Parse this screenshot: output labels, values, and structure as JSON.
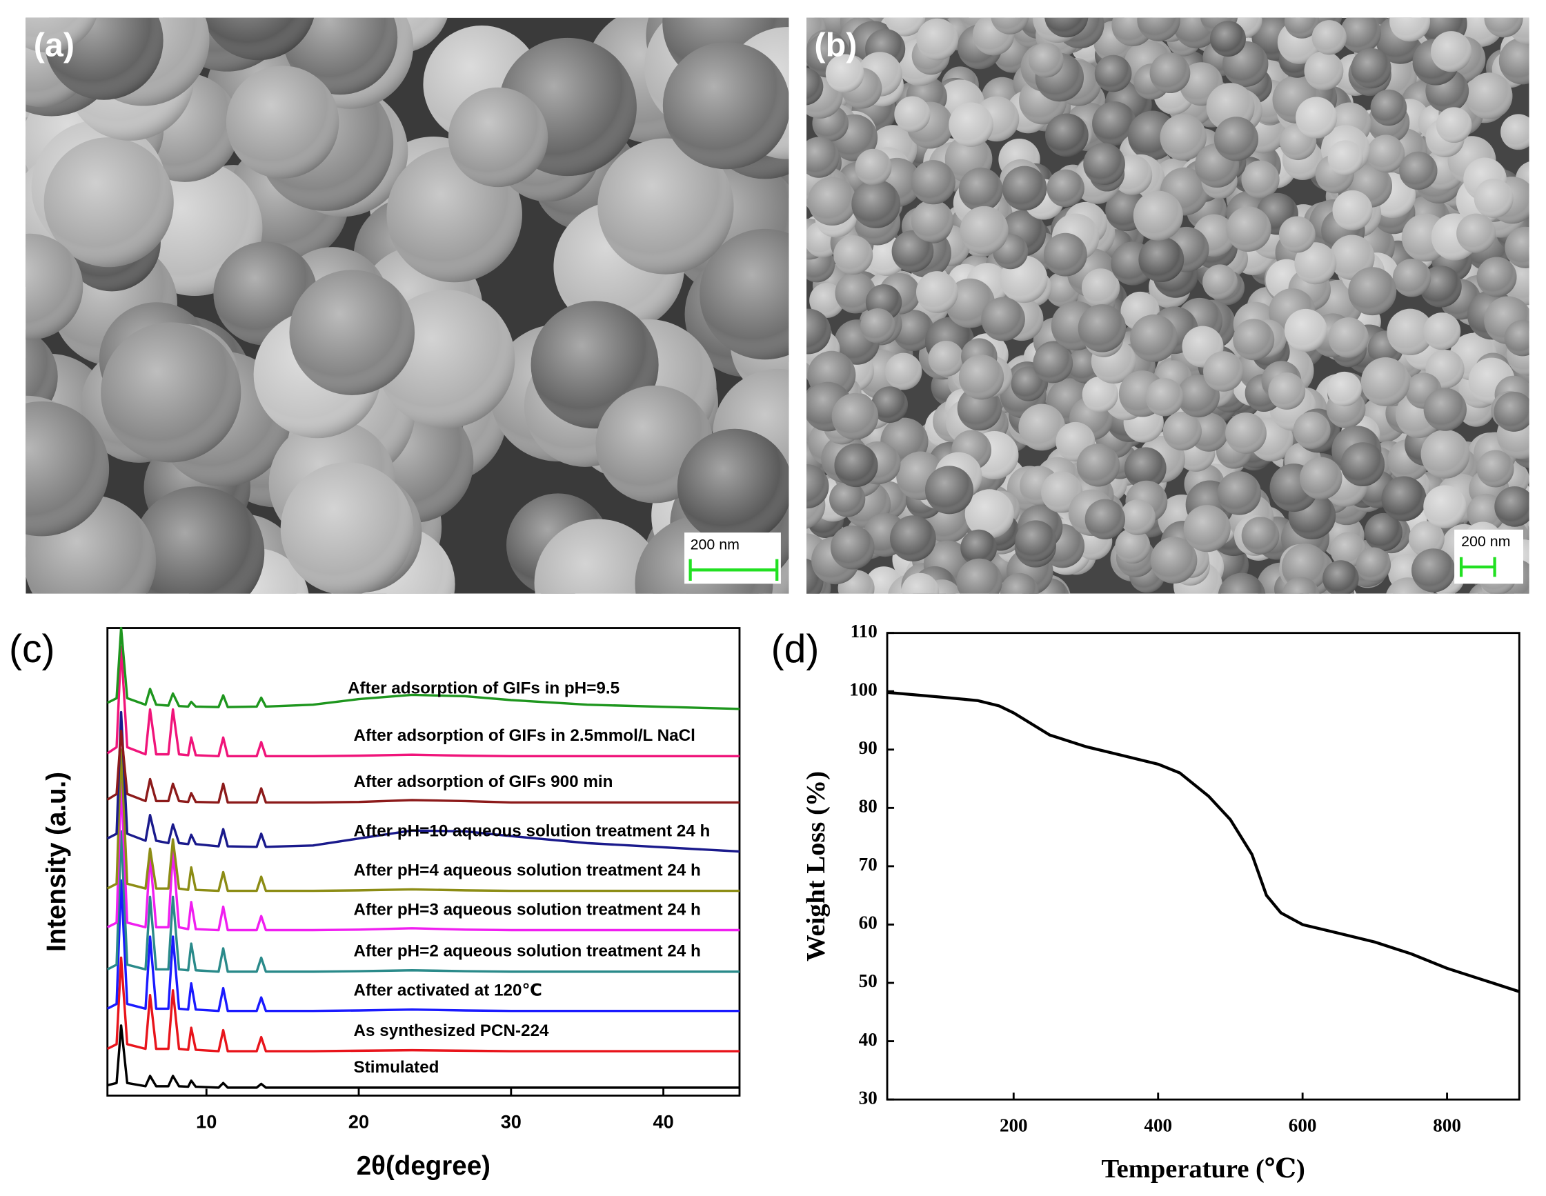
{
  "panels": [
    {
      "label": "(a)",
      "scale_bar": "200 nm"
    },
    {
      "label": "(b)",
      "scale_bar": "200 nm"
    }
  ],
  "chart_data": [
    {
      "type": "line",
      "panel_label": "(c)",
      "x_label": "2θ(degree)",
      "y_label": "Intensity (a.u.)",
      "x": [
        3.5,
        4.1,
        4.4,
        4.8,
        6.0,
        6.3,
        6.7,
        7.5,
        7.8,
        8.2,
        8.8,
        9.0,
        9.3,
        10.8,
        11.1,
        11.4,
        13.3,
        13.6,
        13.9,
        17,
        20,
        23.5,
        27,
        30,
        35,
        45
      ],
      "xlim": [
        3.5,
        45
      ],
      "xticks": [
        10,
        20,
        30,
        40
      ],
      "ylim": [
        0,
        100
      ],
      "series": [
        {
          "name": "Stimulated",
          "color": "#000000",
          "values": [
            2.2,
            2.7,
            15,
            2.7,
            2,
            4.2,
            2,
            2,
            4.2,
            2,
            1.9,
            3.2,
            1.9,
            1.7,
            2.7,
            1.7,
            1.7,
            2.5,
            1.7,
            1.7,
            1.7,
            1.7,
            1.7,
            1.7,
            1.7,
            1.7
          ]
        },
        {
          "name": "As synthesized PCN-224",
          "color": "#e8141b",
          "values": [
            10,
            11,
            29.5,
            11,
            10,
            21.5,
            10,
            10,
            22.5,
            10,
            9.8,
            14.5,
            9.8,
            9.5,
            14,
            9.5,
            9.5,
            12.5,
            9.5,
            9.5,
            9.6,
            9.7,
            9.6,
            9.5,
            9.5,
            9.5
          ]
        },
        {
          "name": "After activated at 120℃",
          "color": "#1a1aff",
          "values": [
            18.6,
            19.6,
            46,
            19.6,
            18.6,
            34,
            18.6,
            18.6,
            34,
            18.6,
            18.4,
            24,
            18.4,
            18.1,
            23,
            18.1,
            18.1,
            21,
            18.1,
            18.1,
            18.2,
            18.4,
            18.2,
            18.1,
            18.1,
            18.1
          ]
        },
        {
          "name": "After pH=2 aqueous solution treatment 24 h",
          "color": "#2a8a8a",
          "values": [
            27,
            28,
            56.5,
            28,
            27,
            42.5,
            27,
            27,
            42.5,
            27,
            26.8,
            32.5,
            26.8,
            26.5,
            31.5,
            26.5,
            26.5,
            29.5,
            26.5,
            26.5,
            26.6,
            26.8,
            26.6,
            26.5,
            26.5,
            26.5
          ]
        },
        {
          "name": "After pH=3 aqueous solution treatment 24 h",
          "color": "#f01ef0",
          "values": [
            36,
            37,
            67,
            37,
            36,
            51.4,
            36,
            36,
            52.4,
            36,
            35.6,
            41.4,
            35.6,
            35.4,
            40.4,
            35.4,
            35.4,
            38.4,
            35.4,
            35.4,
            35.5,
            35.8,
            35.5,
            35.4,
            35.4,
            35.4
          ]
        },
        {
          "name": "After pH=4 aqueous solution treatment 24 h",
          "color": "#8c8c14",
          "values": [
            44.3,
            45.3,
            74,
            45.3,
            44.3,
            52.8,
            44.3,
            44.3,
            54.8,
            44.3,
            44,
            48.8,
            44,
            43.8,
            47.8,
            43.8,
            43.8,
            46.8,
            43.8,
            43.8,
            43.9,
            44.1,
            43.9,
            43.8,
            43.8,
            43.8
          ]
        },
        {
          "name": "After pH=10 aqueous solution treatment 24 h",
          "color": "#1a1a8c",
          "values": [
            55,
            56,
            82,
            56,
            54.5,
            60,
            54.5,
            54,
            58,
            54,
            53.8,
            55.8,
            53.8,
            53.3,
            57,
            53.3,
            53.2,
            56,
            53.2,
            53.5,
            55,
            56.7,
            56.5,
            55.5,
            54,
            52.2
          ]
        },
        {
          "name": "After adsorption of GIFs 900 min",
          "color": "#8c1a1a",
          "values": [
            63.3,
            64.5,
            78,
            64.5,
            63,
            67.7,
            63,
            63,
            66.7,
            63,
            62.8,
            64.7,
            62.8,
            62.7,
            66.7,
            62.7,
            62.7,
            65.7,
            62.7,
            62.7,
            62.8,
            63.2,
            63,
            62.7,
            62.7,
            62.7
          ]
        },
        {
          "name": "After adsorption of GIFs in 2.5mmol/L NaCl",
          "color": "#f0147a",
          "values": [
            73.2,
            74.5,
            96,
            74.5,
            73,
            82.6,
            73,
            73,
            82.6,
            73,
            72.8,
            76.6,
            72.8,
            72.6,
            76.6,
            72.6,
            72.6,
            75.6,
            72.6,
            72.6,
            72.7,
            72.9,
            72.7,
            72.6,
            72.6,
            72.6
          ]
        },
        {
          "name": "After adsorption of GIFs in pH=9.5",
          "color": "#1e961e",
          "values": [
            84,
            85,
            100,
            85,
            83.6,
            87,
            83.6,
            83.4,
            86,
            83.3,
            83.2,
            84.2,
            83.2,
            83.1,
            85.6,
            83.1,
            83.2,
            85.1,
            83.2,
            83.6,
            84.8,
            85.7,
            85.4,
            84.6,
            83.6,
            82.7
          ]
        }
      ]
    },
    {
      "type": "line",
      "panel_label": "(d)",
      "x_label": "Temperature (℃)",
      "y_label": "Weight Loss (%)",
      "x": [
        25,
        100,
        150,
        180,
        200,
        250,
        300,
        350,
        400,
        430,
        470,
        500,
        530,
        550,
        570,
        600,
        650,
        700,
        750,
        800,
        850,
        900
      ],
      "values": [
        99.8,
        99,
        98.4,
        97.5,
        96.3,
        92.5,
        90.5,
        89,
        87.5,
        86,
        82,
        78,
        72,
        65,
        62,
        60,
        58.5,
        57,
        55,
        52.5,
        50.5,
        48.5
      ],
      "color": "#000000",
      "xlim": [
        25,
        900
      ],
      "xticks": [
        200,
        400,
        600,
        800
      ],
      "ylim": [
        30,
        110
      ],
      "yticks": [
        30,
        40,
        50,
        60,
        70,
        80,
        90,
        100,
        110
      ]
    }
  ]
}
